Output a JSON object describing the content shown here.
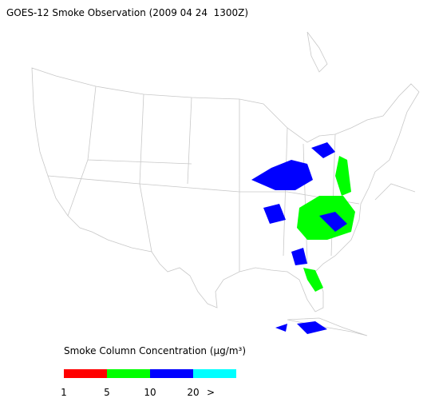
{
  "title": "GOES-12 Smoke Observation (2009 04 24  1300Z)",
  "legend": {
    "title": "Smoke Column Concentration (μg/m³)",
    "colors": [
      "#ff0000",
      "#00ff00",
      "#0000ff",
      "#00ffff"
    ],
    "ticks": [
      1,
      5,
      10,
      20
    ],
    "overflow": ">"
  }
}
